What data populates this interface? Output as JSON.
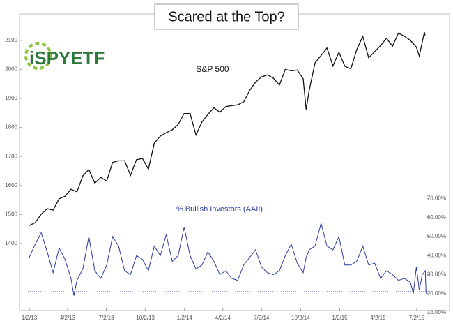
{
  "chart_data": {
    "type": "line",
    "title": "Scared at the Top?",
    "logo": "iSPYETF",
    "annotations": [
      "S&P 500",
      "% Bullish Investors (AAII)"
    ],
    "xlim": [
      "2012-12-10",
      "2015-07-25"
    ],
    "xticks": [
      {
        "value": "2013-01-02",
        "label": "1/2/13"
      },
      {
        "value": "2013-04-02",
        "label": "4/2/13"
      },
      {
        "value": "2013-07-02",
        "label": "7/2/13"
      },
      {
        "value": "2013-10-02",
        "label": "10/2/13"
      },
      {
        "value": "2014-01-02",
        "label": "1/2/14"
      },
      {
        "value": "2014-04-02",
        "label": "4/2/14"
      },
      {
        "value": "2014-07-02",
        "label": "7/2/14"
      },
      {
        "value": "2014-10-02",
        "label": "10/2/14"
      },
      {
        "value": "2015-01-02",
        "label": "1/2/15"
      },
      {
        "value": "2015-04-02",
        "label": "4/2/15"
      },
      {
        "value": "2015-07-02",
        "label": "7/2/15"
      }
    ],
    "ylim": [
      1169,
      2191
    ],
    "yticks": [
      1400,
      1500,
      1600,
      1700,
      1800,
      1900,
      2000,
      2100
    ],
    "y2lim": [
      11.1,
      167
    ],
    "y2ticks": [
      {
        "value": 10,
        "label": "10.00%"
      },
      {
        "value": 20,
        "label": "20.00%"
      },
      {
        "value": 30,
        "label": "30.00%"
      },
      {
        "value": 40,
        "label": "40.00%"
      },
      {
        "value": 50,
        "label": "50.00%"
      },
      {
        "value": 60,
        "label": "60.00%"
      },
      {
        "value": 70,
        "label": "70.00%"
      }
    ],
    "reference_line": {
      "value": 21,
      "axis": "y2",
      "color": "#2b3a9e"
    },
    "series": [
      {
        "name": "S&P 500",
        "color": "#111111",
        "x": [
          "2013-01-02",
          "2013-01-16",
          "2013-01-30",
          "2013-02-13",
          "2013-02-27",
          "2013-03-13",
          "2013-03-27",
          "2013-04-10",
          "2013-04-24",
          "2013-05-08",
          "2013-05-22",
          "2013-06-05",
          "2013-06-19",
          "2013-07-03",
          "2013-07-17",
          "2013-07-31",
          "2013-08-14",
          "2013-08-28",
          "2013-09-11",
          "2013-09-25",
          "2013-10-09",
          "2013-10-23",
          "2013-11-06",
          "2013-11-20",
          "2013-12-04",
          "2013-12-18",
          "2014-01-01",
          "2014-01-15",
          "2014-01-29",
          "2014-02-12",
          "2014-02-26",
          "2014-03-12",
          "2014-03-26",
          "2014-04-09",
          "2014-04-23",
          "2014-05-07",
          "2014-05-21",
          "2014-06-04",
          "2014-06-18",
          "2014-07-02",
          "2014-07-16",
          "2014-07-30",
          "2014-08-13",
          "2014-08-27",
          "2014-09-10",
          "2014-09-24",
          "2014-10-08",
          "2014-10-15",
          "2014-10-22",
          "2014-11-05",
          "2014-11-19",
          "2014-12-03",
          "2014-12-17",
          "2014-12-31",
          "2015-01-14",
          "2015-01-28",
          "2015-02-11",
          "2015-02-25",
          "2015-03-11",
          "2015-03-25",
          "2015-04-08",
          "2015-04-22",
          "2015-05-06",
          "2015-05-20",
          "2015-06-03",
          "2015-06-17",
          "2015-07-01",
          "2015-07-08",
          "2015-07-20",
          "2015-07-22"
        ],
        "values": [
          1462,
          1472,
          1501,
          1520,
          1515,
          1554,
          1563,
          1587,
          1578,
          1633,
          1655,
          1608,
          1628,
          1615,
          1680,
          1685,
          1685,
          1635,
          1689,
          1693,
          1656,
          1746,
          1770,
          1782,
          1792,
          1810,
          1848,
          1848,
          1774,
          1819,
          1845,
          1868,
          1852,
          1872,
          1875,
          1878,
          1888,
          1927,
          1956,
          1974,
          1981,
          1970,
          1946,
          2000,
          1995,
          1998,
          1968,
          1862,
          1927,
          2023,
          2048,
          2074,
          2012,
          2059,
          2011,
          2002,
          2068,
          2114,
          2040,
          2061,
          2082,
          2107,
          2080,
          2125,
          2114,
          2100,
          2077,
          2046,
          2128,
          2114
        ]
      },
      {
        "name": "% Bullish Investors (AAII)",
        "color": "#2b3a9e",
        "axis": "y2",
        "x": [
          "2013-01-02",
          "2013-01-16",
          "2013-01-30",
          "2013-02-13",
          "2013-02-27",
          "2013-03-13",
          "2013-03-27",
          "2013-04-10",
          "2013-04-17",
          "2013-04-24",
          "2013-05-08",
          "2013-05-22",
          "2013-06-05",
          "2013-06-19",
          "2013-07-03",
          "2013-07-17",
          "2013-07-31",
          "2013-08-14",
          "2013-08-28",
          "2013-09-11",
          "2013-09-25",
          "2013-10-09",
          "2013-10-23",
          "2013-11-06",
          "2013-11-20",
          "2013-12-04",
          "2013-12-18",
          "2014-01-01",
          "2014-01-15",
          "2014-01-29",
          "2014-02-12",
          "2014-02-26",
          "2014-03-12",
          "2014-03-26",
          "2014-04-09",
          "2014-04-23",
          "2014-05-07",
          "2014-05-21",
          "2014-06-04",
          "2014-06-18",
          "2014-07-02",
          "2014-07-16",
          "2014-07-30",
          "2014-08-13",
          "2014-08-27",
          "2014-09-10",
          "2014-09-24",
          "2014-10-08",
          "2014-10-15",
          "2014-10-22",
          "2014-11-05",
          "2014-11-19",
          "2014-12-03",
          "2014-12-17",
          "2014-12-31",
          "2015-01-14",
          "2015-01-28",
          "2015-02-11",
          "2015-02-25",
          "2015-03-11",
          "2015-03-25",
          "2015-04-08",
          "2015-04-22",
          "2015-05-06",
          "2015-05-20",
          "2015-06-03",
          "2015-06-17",
          "2015-06-24",
          "2015-07-01",
          "2015-07-08",
          "2015-07-15",
          "2015-07-22",
          "2015-07-24"
        ],
        "values": [
          39,
          46,
          52,
          42,
          31,
          44,
          38,
          28,
          19,
          27,
          33,
          50,
          32,
          28,
          35,
          50,
          45,
          32,
          30,
          40,
          38,
          32,
          45,
          40,
          51,
          37,
          40,
          55,
          40,
          33,
          35,
          42,
          37,
          30,
          32,
          28,
          27,
          35,
          39,
          43,
          34,
          31,
          30,
          32,
          40,
          46,
          36,
          31,
          39,
          43,
          45,
          57,
          45,
          43,
          50,
          35,
          35,
          37,
          45,
          35,
          36,
          28,
          32,
          30,
          27,
          28,
          26,
          20,
          34,
          22,
          30,
          32,
          20
        ]
      }
    ]
  }
}
